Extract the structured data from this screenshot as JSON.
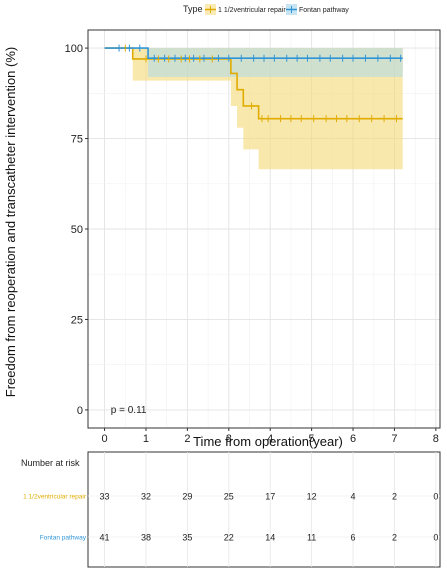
{
  "chart_data": [
    {
      "type": "line",
      "subtype": "kaplan-meier",
      "title": "",
      "xlabel": "Time from operation(year)",
      "ylabel": "Freedom from reoperation and transcatheter intervention (%)",
      "xlim": [
        -0.4,
        8.1
      ],
      "ylim": [
        -5,
        105
      ],
      "xticks": [
        0,
        1,
        2,
        3,
        4,
        5,
        6,
        7,
        8
      ],
      "yticks": [
        0,
        25,
        50,
        75,
        100
      ],
      "grid": true,
      "legend": {
        "title": "Type",
        "position": "top"
      },
      "annotation": "p = 0.11",
      "series": [
        {
          "name": "1 1/2ventricular repair",
          "color": "#e0ac00",
          "fill": "#f5d874",
          "steps": [
            [
              0,
              100
            ],
            [
              0.68,
              97
            ],
            [
              3.05,
              93
            ],
            [
              3.2,
              88.5
            ],
            [
              3.35,
              84
            ],
            [
              3.72,
              80.5
            ],
            [
              7.2,
              80.5
            ]
          ],
          "lower": [
            [
              0,
              100
            ],
            [
              0.68,
              91
            ],
            [
              1.05,
              91
            ],
            [
              3.05,
              84
            ],
            [
              3.2,
              78
            ],
            [
              3.35,
              72
            ],
            [
              3.72,
              66.5
            ],
            [
              7.2,
              66.5
            ]
          ],
          "upper": [
            [
              0,
              100
            ],
            [
              7.2,
              100
            ]
          ],
          "censor": [
            0.5,
            1.0,
            1.3,
            1.55,
            1.85,
            2.05,
            2.3,
            2.6,
            3.55,
            3.8,
            3.95,
            4.25,
            4.5,
            4.75,
            5.05,
            5.35,
            5.6,
            5.85,
            6.15,
            6.45,
            6.75,
            7.05
          ]
        },
        {
          "name": "Fontan pathway",
          "color": "#2f95d6",
          "fill": "#aed8ec",
          "steps": [
            [
              0,
              100
            ],
            [
              1.05,
              97.2
            ],
            [
              7.2,
              97.2
            ]
          ],
          "lower": [
            [
              0,
              100
            ],
            [
              1.05,
              92
            ],
            [
              7.2,
              92
            ]
          ],
          "upper": [
            [
              0,
              100
            ],
            [
              7.2,
              100
            ]
          ],
          "censor": [
            0.35,
            0.6,
            0.85,
            1.2,
            1.45,
            1.7,
            1.95,
            2.15,
            2.4,
            2.75,
            3.0,
            3.3,
            3.6,
            3.85,
            4.1,
            4.4,
            4.65,
            4.9,
            5.2,
            5.45,
            5.75,
            6.0,
            6.3,
            6.6,
            6.9,
            7.15
          ]
        }
      ]
    },
    {
      "type": "table",
      "title": "Number at risk",
      "times": [
        0,
        1,
        2,
        3,
        4,
        5,
        6,
        7,
        8
      ],
      "rows": [
        {
          "name": "1 1/2ventricular repair",
          "color": "#e0ac00",
          "values": [
            33,
            32,
            29,
            25,
            17,
            12,
            4,
            2,
            0
          ]
        },
        {
          "name": "Fontan pathway",
          "color": "#2f95d6",
          "values": [
            41,
            38,
            35,
            22,
            14,
            11,
            6,
            2,
            0
          ]
        }
      ]
    }
  ]
}
